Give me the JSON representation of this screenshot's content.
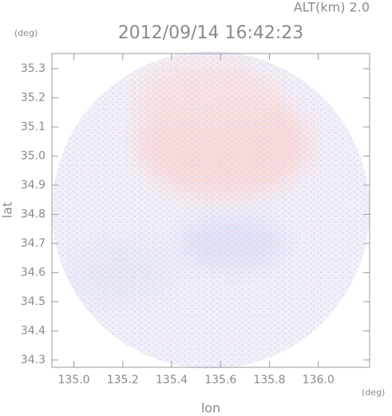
{
  "chart_data": {
    "type": "radar-field",
    "title": "2012/09/14 16:42:23",
    "annotation": "ALT(km) 2.0",
    "y_unit": "(deg)",
    "x_unit": "(deg)",
    "x_label": "lon",
    "y_label": "lat",
    "xlim": [
      134.91,
      136.21
    ],
    "xticks": [
      {
        "value": 135,
        "label": "135.0"
      },
      135.2,
      135.4,
      135.6,
      135.8,
      {
        "value": 136,
        "label": "136.0"
      }
    ],
    "ylim": [
      34.275,
      35.352
    ],
    "yticks": [
      34.3,
      34.4,
      34.5,
      34.6,
      34.7,
      34.8,
      34.9,
      {
        "value": 35,
        "label": "35.0"
      },
      35.1,
      35.2,
      35.3
    ]
  }
}
